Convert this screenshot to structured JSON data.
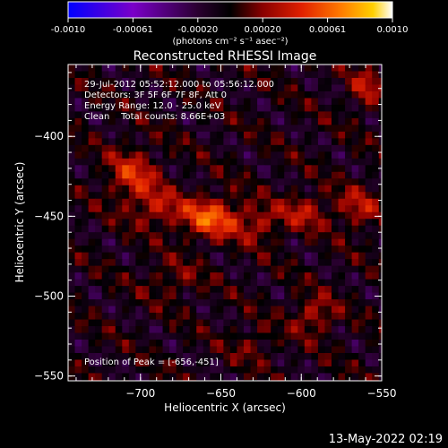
{
  "colorbar": {
    "min": -0.001,
    "max": 0.001,
    "tick_labels": [
      "-0.0010",
      "-0.00061",
      "-0.00020",
      "0.00020",
      "0.00061",
      "0.0010"
    ],
    "unit_label": "(photons cm⁻² s⁻¹ asec⁻²)",
    "colormap": [
      "#0000ff",
      "#7a00c8",
      "#2a0030",
      "#000000",
      "#8a0000",
      "#e02000",
      "#ff7a00",
      "#ffd000",
      "#ffffff"
    ]
  },
  "chart_data": {
    "type": "heatmap",
    "title": "Reconstructed RHESSI Image",
    "xlabel": "Heliocentric X (arcsec)",
    "ylabel": "Heliocentric Y (arcsec)",
    "xlim": [
      -745,
      -550
    ],
    "ylim": [
      -553,
      -355
    ],
    "x_ticks": [
      -700,
      -650,
      -600,
      -550
    ],
    "x_tick_labels": [
      "−700",
      "−650",
      "−600",
      "−550"
    ],
    "y_ticks": [
      -400,
      -450,
      -500,
      -550
    ],
    "y_tick_labels": [
      "−400",
      "−450",
      "−500",
      "−550"
    ],
    "annotations": [
      "29-Jul-2012 05:52:12.000 to 05:56:12.000",
      "Detectors: 3F 5F 6F 7F 8F, Att 0",
      "Energy Range: 12.0 - 25.0 keV",
      "Clean    Total counts: 8.66E+03"
    ],
    "peak_label": "Position of Peak = [-656,-451]",
    "peak": {
      "x": -656,
      "y": -451
    },
    "sources": [
      {
        "x": -656,
        "y": -451,
        "sx": 14,
        "sy": 9,
        "amp": 1.0
      },
      {
        "x": -705,
        "y": -425,
        "sx": 11,
        "sy": 12,
        "amp": 0.72
      },
      {
        "x": -690,
        "y": -445,
        "sx": 10,
        "sy": 8,
        "amp": 0.55
      },
      {
        "x": -625,
        "y": -455,
        "sx": 9,
        "sy": 8,
        "amp": 0.5
      },
      {
        "x": -598,
        "y": -447,
        "sx": 10,
        "sy": 8,
        "amp": 0.55
      },
      {
        "x": -565,
        "y": -445,
        "sx": 10,
        "sy": 9,
        "amp": 0.55
      },
      {
        "x": -592,
        "y": -512,
        "sx": 9,
        "sy": 8,
        "amp": 0.6
      },
      {
        "x": -560,
        "y": -370,
        "sx": 7,
        "sy": 9,
        "amp": 0.55
      },
      {
        "x": -680,
        "y": -490,
        "sx": 12,
        "sy": 8,
        "amp": 0.35
      },
      {
        "x": -630,
        "y": -530,
        "sx": 10,
        "sy": 8,
        "amp": 0.3
      }
    ]
  },
  "footer_timestamp": "13-May-2022 02:19"
}
